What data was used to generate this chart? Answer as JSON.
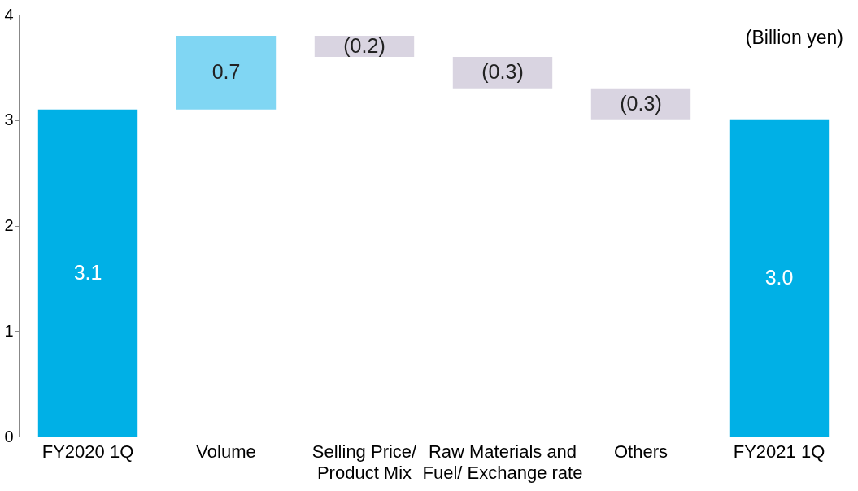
{
  "chart_data": {
    "type": "bar",
    "categories": [
      "FY2020 1Q",
      "Volume",
      "Selling Price/\nProduct Mix",
      "Raw Materials and\nFuel/ Exchange rate",
      "Others",
      "FY2021 1Q"
    ],
    "values": [
      3.1,
      0.7,
      -0.2,
      -0.3,
      -0.3,
      3.0
    ],
    "base": [
      0,
      3.1,
      3.8,
      3.6,
      3.3,
      0
    ],
    "colors": [
      "#00b0e6",
      "#80d6f3",
      "#d9d4e1",
      "#d9d4e1",
      "#d9d4e1",
      "#00b0e6"
    ],
    "value_labels": [
      "3.1",
      "0.7",
      "(0.2)",
      "(0.3)",
      "(0.3)",
      "3.0"
    ],
    "ylim": [
      0,
      4
    ],
    "yticks": [
      0,
      1,
      2,
      3,
      4
    ],
    "annotations": [
      "(Billion yen)"
    ]
  }
}
